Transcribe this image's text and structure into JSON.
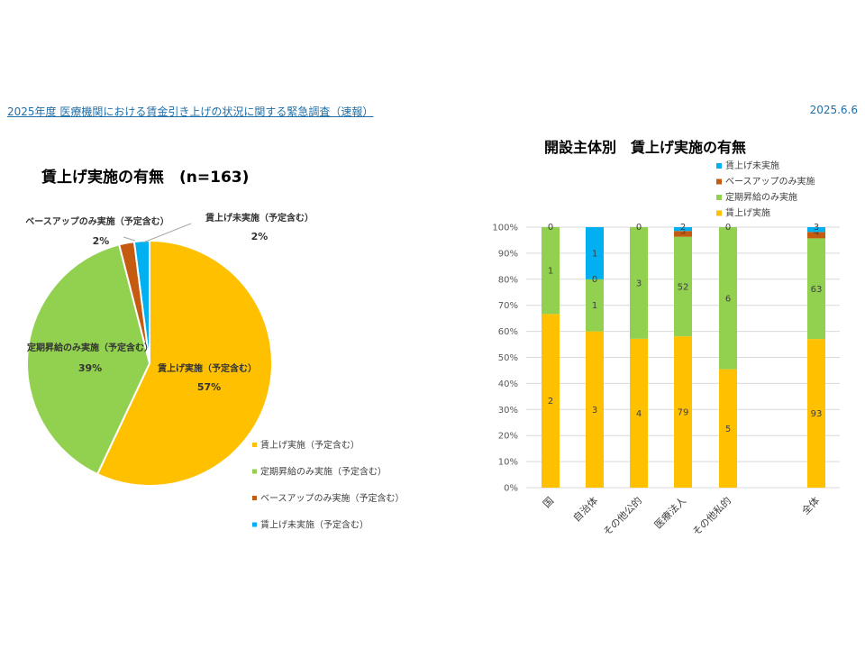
{
  "header": {
    "survey_title": "2025年度 医療機関における賃金引き上げの状況に関する緊急調査（速報）",
    "date": "2025.6.6"
  },
  "chart_data": [
    {
      "type": "pie",
      "title": "賃上げ実施の有無　(n=163)",
      "slices": [
        {
          "label": "賃上げ実施（予定含む）",
          "value": 57,
          "pct_label": "57%",
          "color": "#FFC000"
        },
        {
          "label": "定期昇給のみ実施（予定含む）",
          "value": 39,
          "pct_label": "39%",
          "color": "#92D050"
        },
        {
          "label": "ベースアップのみ実施（予定含む）",
          "value": 2,
          "pct_label": "2%",
          "color": "#C55A11"
        },
        {
          "label": "賃上げ未実施（予定含む）",
          "value": 2,
          "pct_label": "2%",
          "color": "#00B0F0"
        }
      ],
      "legend": [
        "賃上げ実施（予定含む）",
        "定期昇給のみ実施（予定含む）",
        "ベースアップのみ実施（予定含む）",
        "賃上げ未実施（予定含む）"
      ],
      "legend_position": "bottom-right"
    },
    {
      "type": "bar",
      "stacked": "percent",
      "title": "開設主体別　賃上げ実施の有無",
      "categories": [
        "国",
        "自治体",
        "その他公的",
        "医療法人",
        "その他私的",
        "",
        "全体"
      ],
      "y_ticks": [
        "0%",
        "10%",
        "20%",
        "30%",
        "40%",
        "50%",
        "60%",
        "70%",
        "80%",
        "90%",
        "100%"
      ],
      "ylim": [
        0,
        100
      ],
      "series": [
        {
          "name": "賃上げ実施",
          "color": "#FFC000",
          "values": [
            2,
            3,
            4,
            79,
            5,
            null,
            93
          ]
        },
        {
          "name": "定期昇給のみ実施",
          "color": "#92D050",
          "values": [
            1,
            1,
            3,
            52,
            6,
            null,
            63
          ]
        },
        {
          "name": "ベースアップのみ実施",
          "color": "#C55A11",
          "values": [
            null,
            null,
            null,
            3,
            null,
            null,
            4
          ]
        },
        {
          "name": "賃上げ未実施",
          "color": "#00B0F0",
          "values": [
            0,
            1,
            0,
            2,
            0,
            null,
            3
          ]
        }
      ],
      "extra_labels": [
        {
          "category_index": 1,
          "text": "0"
        }
      ],
      "legend_position": "top"
    }
  ]
}
